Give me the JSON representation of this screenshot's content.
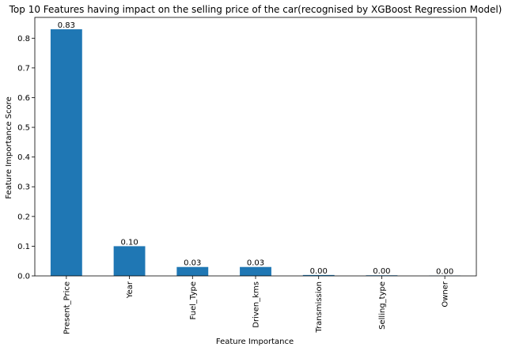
{
  "chart_data": {
    "type": "bar",
    "title": "Top 10 Features having impact on the selling price of the car(recognised by XGBoost Regression Model)",
    "xlabel": "Feature Importance",
    "ylabel": "Feature Importance Score",
    "categories": [
      "Present_Price",
      "Year",
      "Fuel_Type",
      "Driven_kms",
      "Transmission",
      "Selling_type",
      "Owner"
    ],
    "values": [
      0.83,
      0.1,
      0.03,
      0.03,
      0.003,
      0.002,
      0.001
    ],
    "data_labels": [
      "0.83",
      "0.10",
      "0.03",
      "0.03",
      "0.00",
      "0.00",
      "0.00"
    ],
    "ylim": [
      0,
      0.87
    ],
    "yticks": [
      0.0,
      0.1,
      0.2,
      0.3,
      0.4,
      0.5,
      0.6,
      0.7,
      0.8
    ],
    "ytick_labels": [
      "0.0",
      "0.1",
      "0.2",
      "0.3",
      "0.4",
      "0.5",
      "0.6",
      "0.7",
      "0.8"
    ],
    "bar_color": "#1f77b4",
    "grid": false,
    "legend": "none"
  }
}
